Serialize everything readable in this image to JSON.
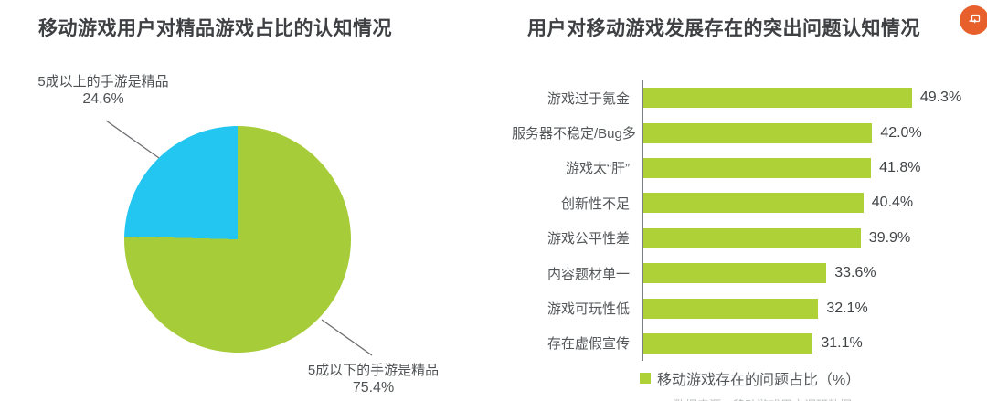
{
  "chart_data": [
    {
      "type": "pie",
      "title": "移动游戏用户对精品游戏占比的认知情况",
      "start_angle": "top",
      "direction": "clockwise",
      "draw_order": [
        1,
        0
      ],
      "slices": [
        {
          "label": "5成以上的手游是精品",
          "value": 24.6,
          "value_label": "24.6%",
          "color": "#23c6f0"
        },
        {
          "label": "5成以下的手游是精品",
          "value": 75.4,
          "value_label": "75.4%",
          "color": "#a7cc39"
        }
      ]
    },
    {
      "type": "bar",
      "orientation": "horizontal",
      "title": "用户对移动游戏发展存在的突出问题认知情况",
      "categories": [
        "游戏过于氪金",
        "服务器不稳定/Bug多",
        "游戏太“肝”",
        "创新性不足",
        "游戏公平性差",
        "内容题材单一",
        "游戏可玩性低",
        "存在虚假宣传"
      ],
      "values": [
        49.3,
        42.0,
        41.8,
        40.4,
        39.9,
        33.6,
        32.1,
        31.1
      ],
      "value_labels": [
        "49.3%",
        "42.0%",
        "41.8%",
        "40.4%",
        "39.9%",
        "33.6%",
        "32.1%",
        "31.1%"
      ],
      "xlim": [
        0,
        50
      ],
      "bar_color": "#aed137",
      "axis_color": "#7c7f82",
      "legend": "移动游戏存在的问题占比（%）",
      "legend_position": "bottom"
    }
  ],
  "footer": {
    "note_partial": "数据来源：移动游戏用户调研数据。"
  },
  "badge": {
    "name": "share-image-icon",
    "color": "#e7602c"
  }
}
